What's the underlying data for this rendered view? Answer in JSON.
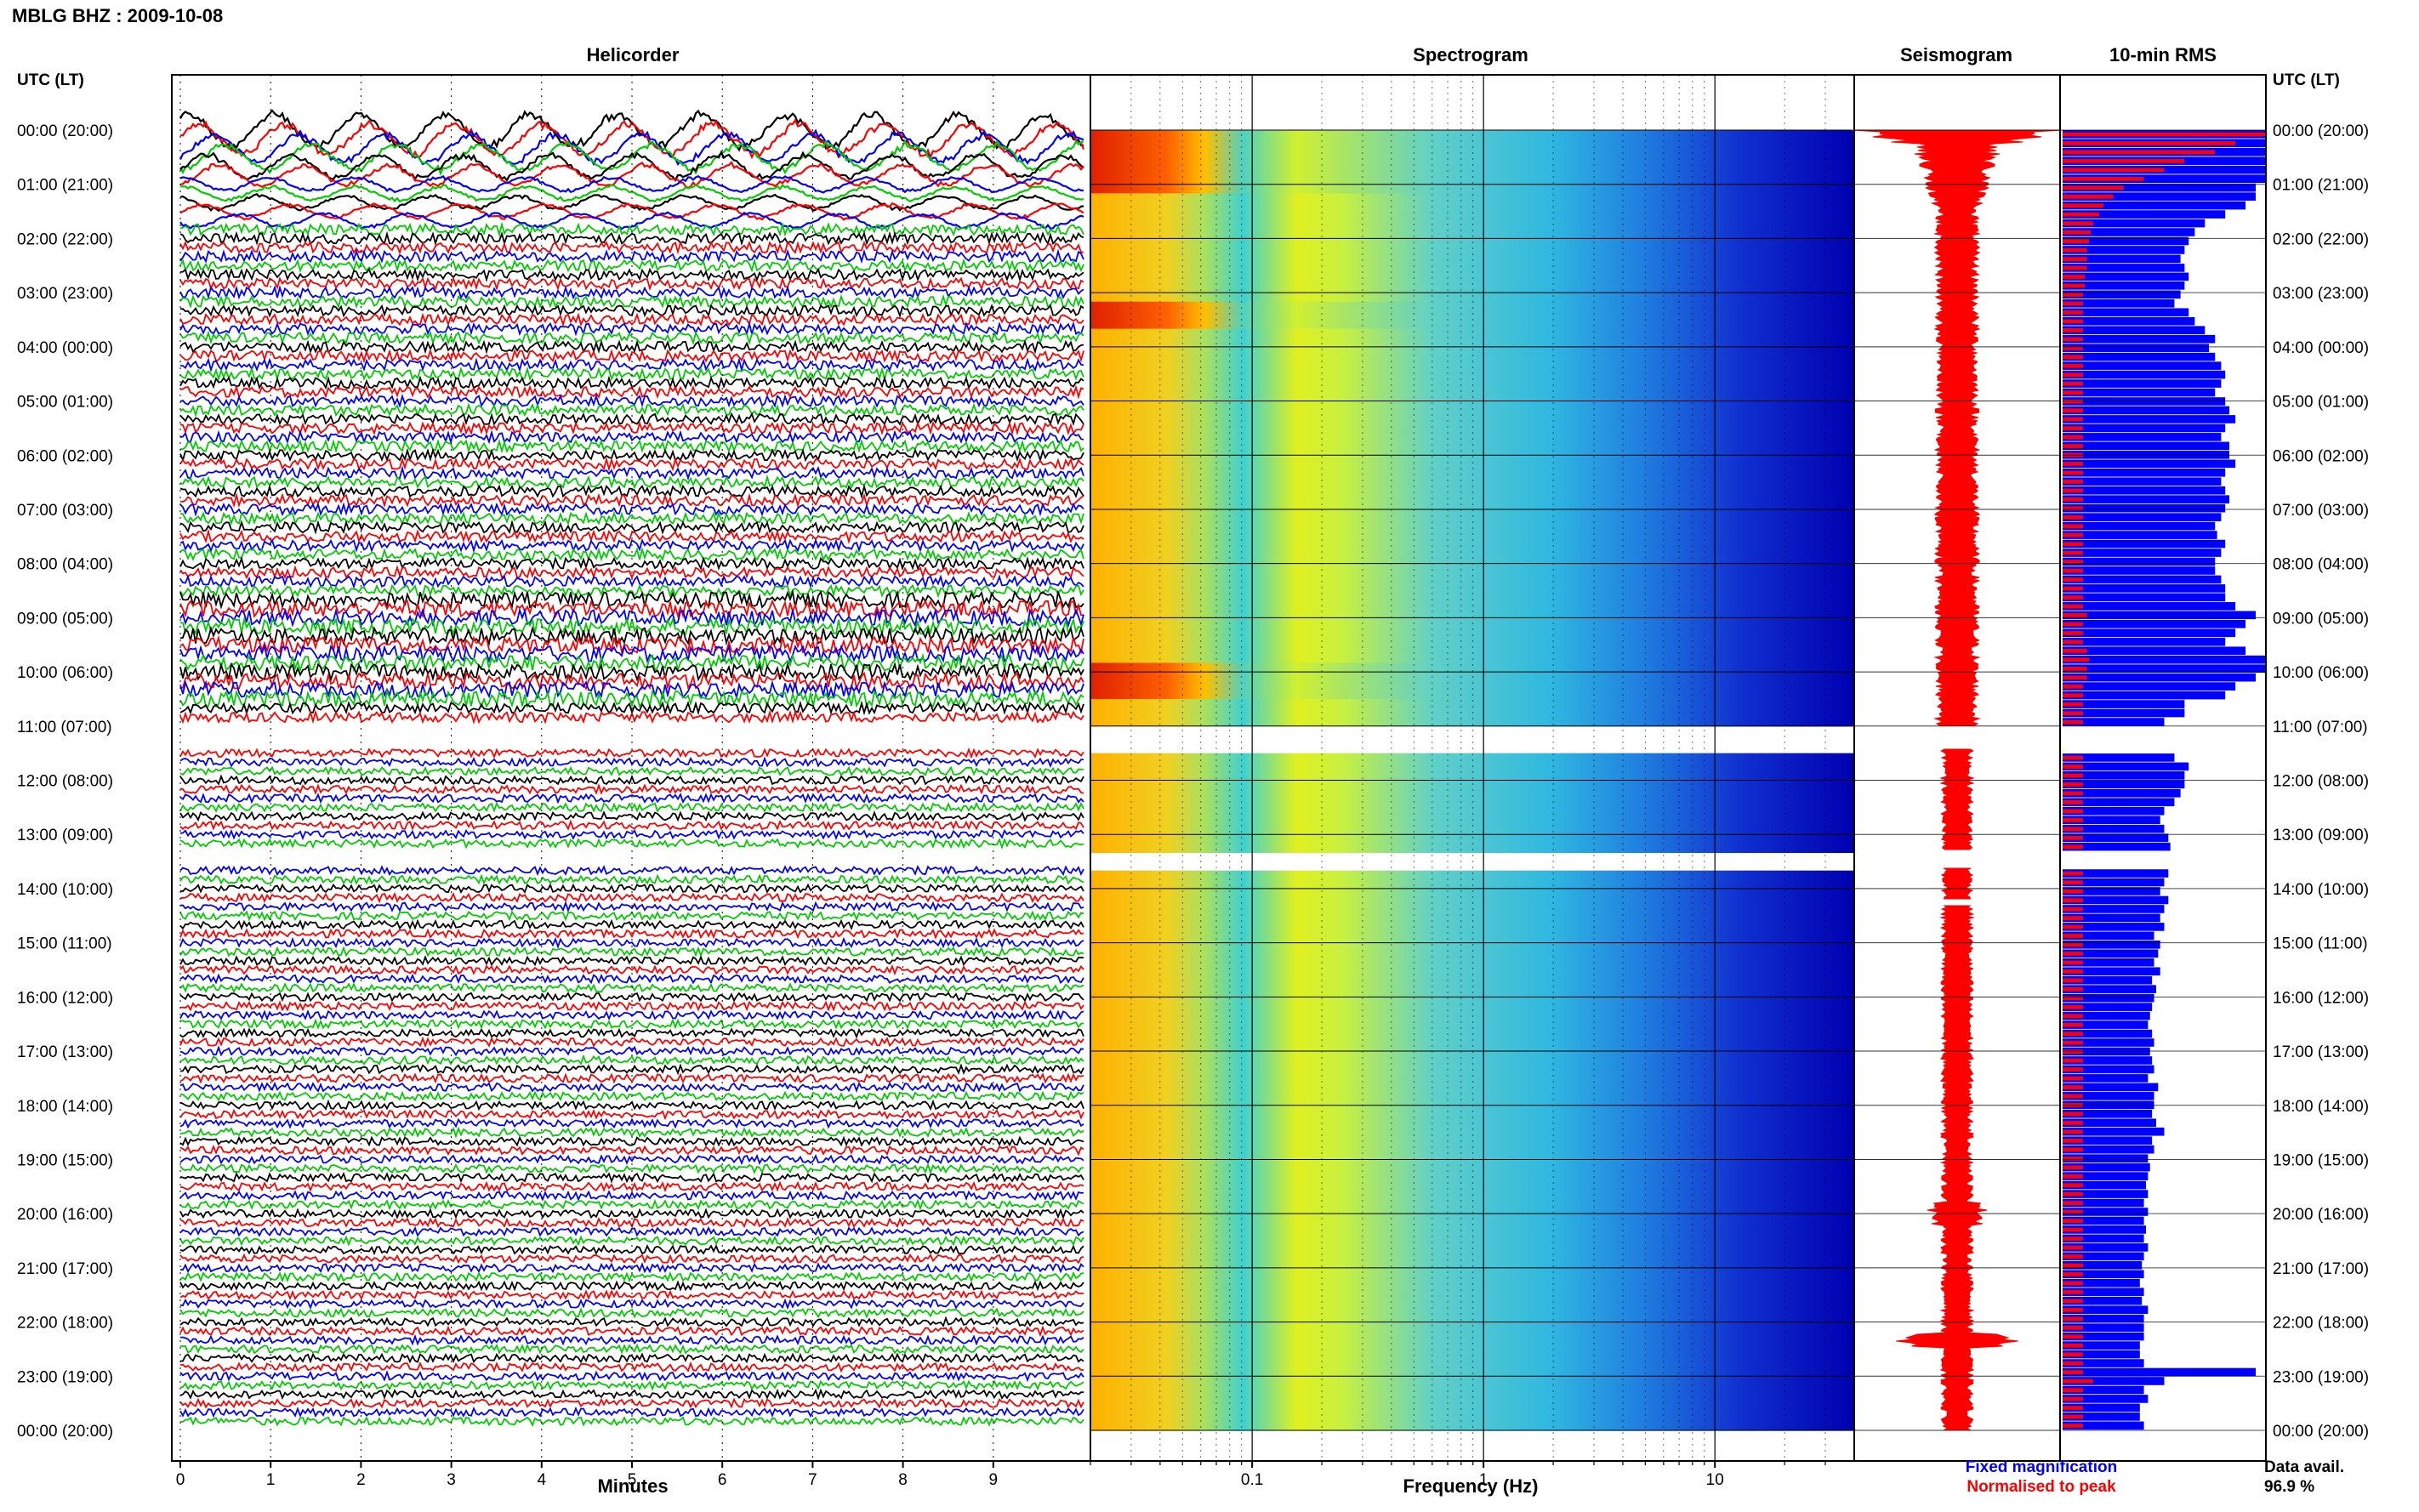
{
  "header": {
    "station_title": "MBLG BHZ : 2009-10-08"
  },
  "panels": {
    "helicorder": "Helicorder",
    "spectrogram": "Spectrogram",
    "seismogram": "Seismogram",
    "rms": "10-min RMS"
  },
  "axis_labels": {
    "time_left": "UTC (LT)",
    "time_right": "UTC (LT)",
    "minutes": "Minutes",
    "frequency": "Frequency (Hz)"
  },
  "legend": {
    "fixed": "Fixed magnification",
    "fixed_color": "#0000ff",
    "normalised": "Normalised to peak",
    "normalised_color": "#ff0000"
  },
  "data_availability": {
    "label": "Data avail.",
    "value": "96.9 %"
  },
  "colors": {
    "trace_cycle": [
      "#000000",
      "#ff0000",
      "#0000ff",
      "#00cc00"
    ],
    "rms_fixed": "#0000ff",
    "rms_norm": "#ff0000",
    "seismogram": "#ff0000"
  },
  "chart_data": {
    "type": "heatmap",
    "title": "MBLG BHZ : 2009-10-08",
    "time_ticks": [
      "00:00 (20:00)",
      "01:00 (21:00)",
      "02:00 (22:00)",
      "03:00 (23:00)",
      "04:00 (00:00)",
      "05:00 (01:00)",
      "06:00 (02:00)",
      "07:00 (03:00)",
      "08:00 (04:00)",
      "09:00 (05:00)",
      "10:00 (06:00)",
      "11:00 (07:00)",
      "12:00 (08:00)",
      "13:00 (09:00)",
      "14:00 (10:00)",
      "15:00 (11:00)",
      "16:00 (12:00)",
      "17:00 (13:00)",
      "18:00 (14:00)",
      "19:00 (15:00)",
      "20:00 (16:00)",
      "21:00 (17:00)",
      "22:00 (18:00)",
      "23:00 (19:00)",
      "00:00 (20:00)"
    ],
    "minute_ticks": [
      "0",
      "1",
      "2",
      "3",
      "4",
      "5",
      "6",
      "7",
      "8",
      "9"
    ],
    "frequency_ticks": [
      "0.1",
      "1",
      "10"
    ],
    "frequency_range_hz": [
      0.02,
      40
    ],
    "minute_range": [
      0,
      10
    ],
    "gaps_utc_hours": [
      [
        11.0,
        11.4
      ],
      [
        13.3,
        13.6
      ],
      [
        14.2,
        14.3
      ]
    ],
    "rms_fixed_relative": [
      1.0,
      1.0,
      1.0,
      1.0,
      1.0,
      1.0,
      0.95,
      0.95,
      0.9,
      0.8,
      0.7,
      0.65,
      0.62,
      0.6,
      0.58,
      0.6,
      0.62,
      0.6,
      0.58,
      0.55,
      0.62,
      0.65,
      0.7,
      0.75,
      0.72,
      0.75,
      0.78,
      0.8,
      0.78,
      0.75,
      0.8,
      0.82,
      0.85,
      0.8,
      0.78,
      0.82,
      0.82,
      0.85,
      0.8,
      0.78,
      0.8,
      0.82,
      0.8,
      0.78,
      0.75,
      0.76,
      0.8,
      0.78,
      0.75,
      0.75,
      0.78,
      0.8,
      0.8,
      0.85,
      0.95,
      0.9,
      0.85,
      0.8,
      0.9,
      1.0,
      1.0,
      0.95,
      0.85,
      0.8,
      0.6,
      0.6,
      0.5,
      0.52,
      0.55,
      0.58,
      0.55,
      0.62,
      0.6,
      0.6,
      0.58,
      0.55,
      0.5,
      0.48,
      0.5,
      0.52,
      0.53,
      0.52,
      0.5,
      0.52,
      0.5,
      0.48,
      0.52,
      0.5,
      0.48,
      0.5,
      0.45,
      0.48,
      0.47,
      0.45,
      0.48,
      0.44,
      0.46,
      0.45,
      0.44,
      0.43,
      0.42,
      0.44,
      0.45,
      0.43,
      0.44,
      0.45,
      0.42,
      0.47,
      0.45,
      0.45,
      0.44,
      0.46,
      0.5,
      0.44,
      0.45,
      0.42,
      0.43,
      0.42,
      0.41,
      0.42,
      0.4,
      0.42,
      0.4,
      0.41,
      0.4,
      0.42,
      0.4,
      0.39,
      0.4,
      0.38,
      0.4,
      0.39,
      0.42,
      0.4,
      0.4,
      0.4,
      0.38,
      0.38,
      0.4,
      0.95,
      0.5,
      0.4,
      0.42,
      0.38,
      0.38,
      0.4
    ],
    "rms_norm_relative": [
      1.0,
      0.85,
      0.75,
      0.6,
      0.5,
      0.4,
      0.3,
      0.25,
      0.2,
      0.18,
      0.15,
      0.14,
      0.13,
      0.12,
      0.12,
      0.12,
      0.11,
      0.11,
      0.1,
      0.1,
      0.1,
      0.1,
      0.1,
      0.1,
      0.1,
      0.1,
      0.1,
      0.1,
      0.1,
      0.1,
      0.1,
      0.1,
      0.1,
      0.1,
      0.1,
      0.1,
      0.1,
      0.1,
      0.1,
      0.1,
      0.1,
      0.1,
      0.1,
      0.1,
      0.1,
      0.1,
      0.1,
      0.1,
      0.1,
      0.1,
      0.1,
      0.1,
      0.1,
      0.1,
      0.12,
      0.1,
      0.1,
      0.1,
      0.12,
      0.13,
      0.12,
      0.12,
      0.1,
      0.1,
      0.1,
      0.1,
      0.1,
      0.1,
      0.1,
      0.1,
      0.1,
      0.1,
      0.1,
      0.1,
      0.1,
      0.1,
      0.1,
      0.1,
      0.1,
      0.1,
      0.1,
      0.1,
      0.1,
      0.1,
      0.1,
      0.1,
      0.1,
      0.1,
      0.1,
      0.1,
      0.1,
      0.1,
      0.1,
      0.1,
      0.1,
      0.1,
      0.1,
      0.1,
      0.1,
      0.1,
      0.1,
      0.1,
      0.1,
      0.1,
      0.1,
      0.1,
      0.1,
      0.1,
      0.1,
      0.1,
      0.1,
      0.1,
      0.1,
      0.1,
      0.1,
      0.1,
      0.1,
      0.1,
      0.1,
      0.1,
      0.1,
      0.1,
      0.1,
      0.1,
      0.1,
      0.1,
      0.1,
      0.1,
      0.1,
      0.1,
      0.1,
      0.1,
      0.1,
      0.1,
      0.1,
      0.1,
      0.1,
      0.1,
      0.1,
      0.1,
      0.15,
      0.1,
      0.1,
      0.1,
      0.1,
      0.1
    ]
  }
}
